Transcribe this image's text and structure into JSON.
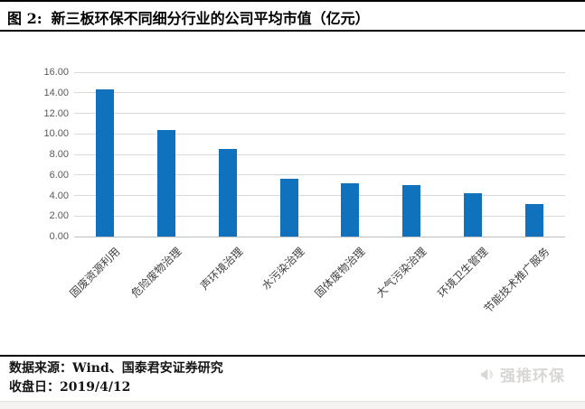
{
  "header": {
    "figure_label": "图 2:",
    "title": "新三板环保不同细分行业的公司平均市值（亿元）"
  },
  "chart_data": {
    "type": "bar",
    "title": "新三板环保不同细分行业的公司平均市值（亿元）",
    "categories": [
      "固废资源利用",
      "危险废物治理",
      "声环境治理",
      "水污染治理",
      "固体废物治理",
      "大气污染治理",
      "环境卫生管理",
      "节能技术推广服务"
    ],
    "values": [
      14.3,
      10.4,
      8.5,
      5.6,
      5.2,
      5.0,
      4.2,
      3.2
    ],
    "xlabel": "",
    "ylabel": "",
    "ylim": [
      0,
      16
    ],
    "ytick_step": 2,
    "ytick_decimals": 2,
    "grid": true,
    "legend": "none",
    "bar_color": "#1072BC",
    "gridline_color": "#D9D9D9",
    "axis_line_color": "#BFBFBF",
    "tick_label_color": "#595959",
    "category_label_color": "#404040"
  },
  "footer": {
    "source_line": "数据来源：Wind、国泰君安证券研究",
    "close_date_line": "收盘日：2019/4/12"
  },
  "watermark": {
    "label": "强推环保",
    "icon": "megaphone-icon",
    "color": "#D8D7D3"
  }
}
